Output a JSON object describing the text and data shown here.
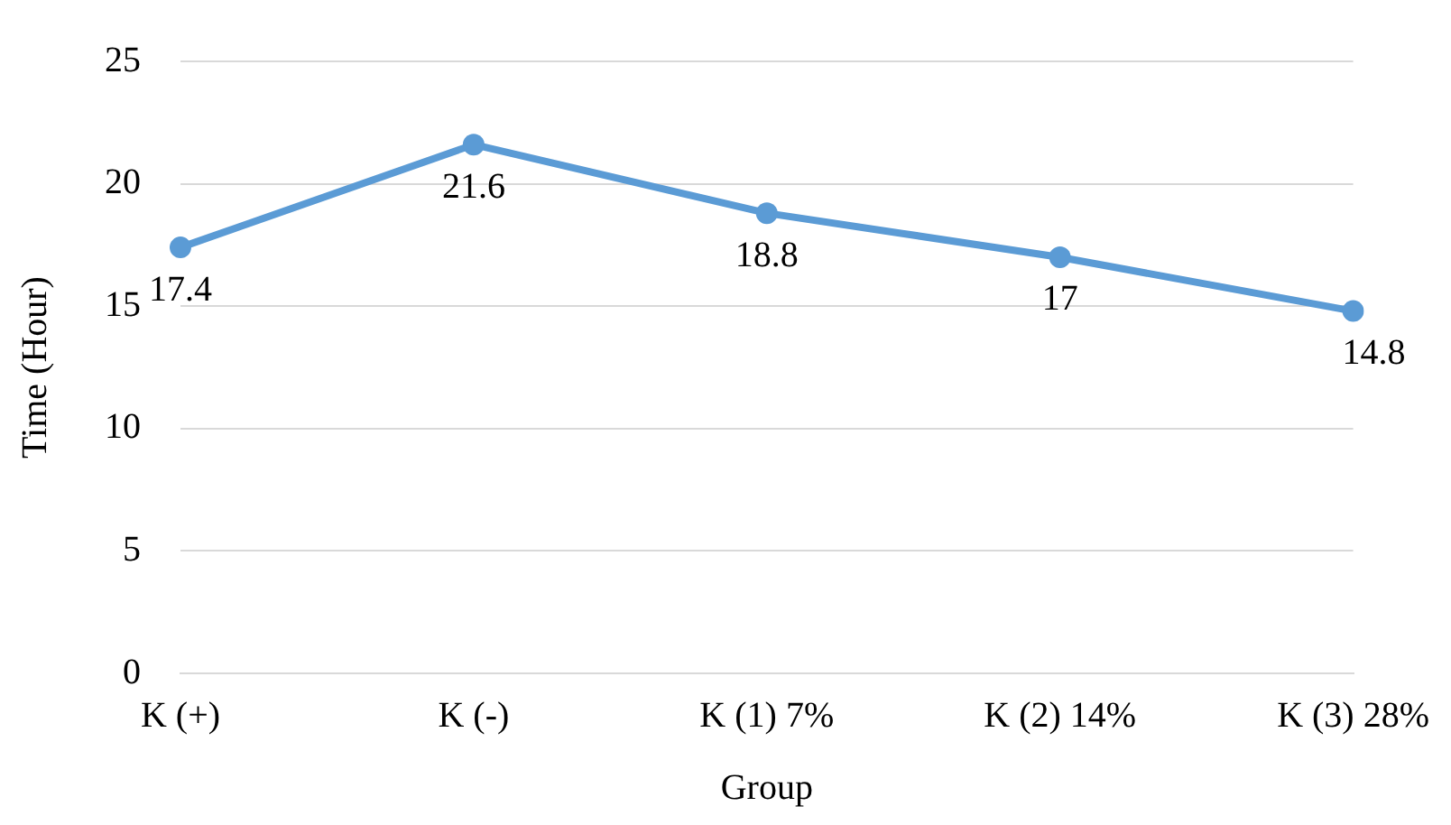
{
  "chart_data": {
    "type": "line",
    "xlabel": "Group",
    "ylabel": "Time (Hour)",
    "categories": [
      "K (+)",
      "K (-)",
      "K (1) 7%",
      "K (2) 14%",
      "K (3) 28%"
    ],
    "series": [
      {
        "color": "#5b9bd5",
        "values": [
          17.4,
          21.6,
          18.8,
          17,
          14.8
        ]
      }
    ],
    "ylim": [
      0,
      25
    ],
    "yticks": [
      0,
      5,
      10,
      15,
      20,
      25
    ],
    "grid": "y",
    "legend": false,
    "marker": "circle",
    "line_style": "solid",
    "data_labels": true
  }
}
